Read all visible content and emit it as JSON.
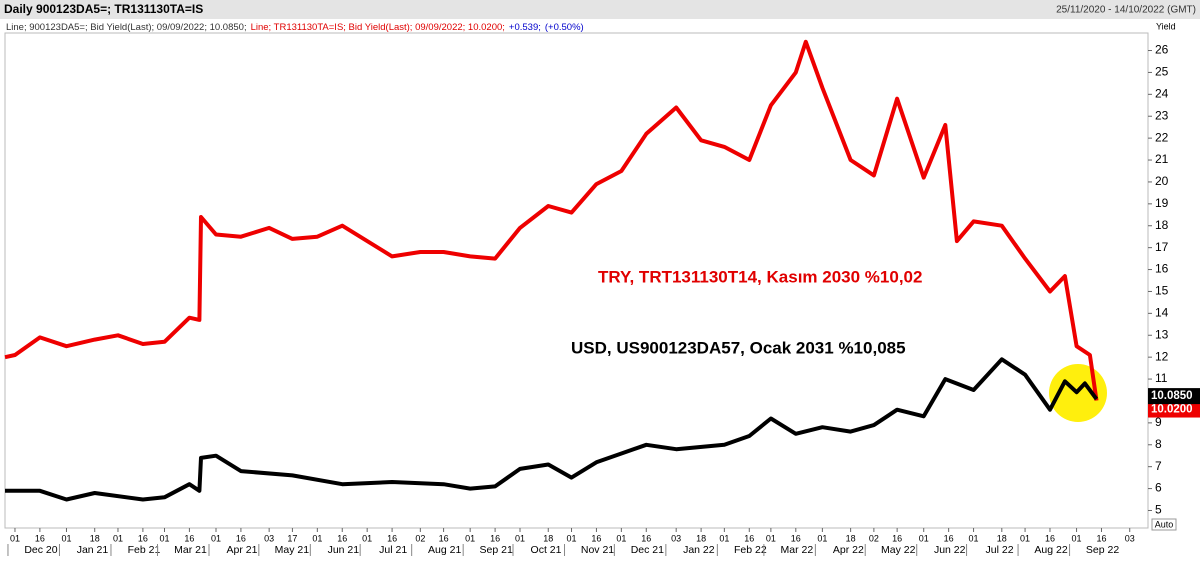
{
  "chart_data": {
    "type": "line",
    "title": "Daily 900123DA5=; TR131130TA=IS",
    "subtitle": "25/11/2020 - 14/10/2022 (GMT)",
    "legend_text": [
      {
        "text": "Line; 900123DA5=; Bid Yield(Last); 09/09/2022; 10.0850;",
        "color": "#333333"
      },
      {
        "text": "Line; TR131130TA=IS; Bid Yield(Last); 09/09/2022; 10.0200;",
        "color": "#e00000"
      },
      {
        "text": "+0.539;",
        "color": "#0000cc"
      },
      {
        "text": "(+0.50%)",
        "color": "#0000cc"
      }
    ],
    "y_axis_label": "Yield",
    "scale_mode": "Auto",
    "xlim": [
      "2020-11-25",
      "2022-10-14"
    ],
    "ylim": [
      4.2,
      26.8
    ],
    "yticks": [
      5,
      6,
      7,
      8,
      9,
      10,
      11,
      12,
      13,
      14,
      15,
      16,
      17,
      18,
      19,
      20,
      21,
      22,
      23,
      24,
      25,
      26
    ],
    "xticks": [
      {
        "value": "2020-12-01",
        "label": "01"
      },
      {
        "value": "2020-12-16",
        "label": "16"
      },
      {
        "value": "2021-01-01",
        "label": "01"
      },
      {
        "value": "2021-01-18",
        "label": "18"
      },
      {
        "value": "2021-02-01",
        "label": "01"
      },
      {
        "value": "2021-02-16",
        "label": "16"
      },
      {
        "value": "2021-03-01",
        "label": "01"
      },
      {
        "value": "2021-03-16",
        "label": "16"
      },
      {
        "value": "2021-04-01",
        "label": "01"
      },
      {
        "value": "2021-04-16",
        "label": "16"
      },
      {
        "value": "2021-05-03",
        "label": "03"
      },
      {
        "value": "2021-05-17",
        "label": "17"
      },
      {
        "value": "2021-06-01",
        "label": "01"
      },
      {
        "value": "2021-06-16",
        "label": "16"
      },
      {
        "value": "2021-07-01",
        "label": "01"
      },
      {
        "value": "2021-07-16",
        "label": "16"
      },
      {
        "value": "2021-08-02",
        "label": "02"
      },
      {
        "value": "2021-08-16",
        "label": "16"
      },
      {
        "value": "2021-09-01",
        "label": "01"
      },
      {
        "value": "2021-09-16",
        "label": "16"
      },
      {
        "value": "2021-10-01",
        "label": "01"
      },
      {
        "value": "2021-10-18",
        "label": "18"
      },
      {
        "value": "2021-11-01",
        "label": "01"
      },
      {
        "value": "2021-11-16",
        "label": "16"
      },
      {
        "value": "2021-12-01",
        "label": "01"
      },
      {
        "value": "2021-12-16",
        "label": "16"
      },
      {
        "value": "2022-01-03",
        "label": "03"
      },
      {
        "value": "2022-01-18",
        "label": "18"
      },
      {
        "value": "2022-02-01",
        "label": "01"
      },
      {
        "value": "2022-02-16",
        "label": "16"
      },
      {
        "value": "2022-03-01",
        "label": "01"
      },
      {
        "value": "2022-03-16",
        "label": "16"
      },
      {
        "value": "2022-04-01",
        "label": "01"
      },
      {
        "value": "2022-04-18",
        "label": "18"
      },
      {
        "value": "2022-05-02",
        "label": "02"
      },
      {
        "value": "2022-05-16",
        "label": "16"
      },
      {
        "value": "2022-06-01",
        "label": "01"
      },
      {
        "value": "2022-06-16",
        "label": "16"
      },
      {
        "value": "2022-07-01",
        "label": "01"
      },
      {
        "value": "2022-07-18",
        "label": "18"
      },
      {
        "value": "2022-08-01",
        "label": "01"
      },
      {
        "value": "2022-08-16",
        "label": "16"
      },
      {
        "value": "2022-09-01",
        "label": "01"
      },
      {
        "value": "2022-09-16",
        "label": "16"
      },
      {
        "value": "2022-10-03",
        "label": "03"
      }
    ],
    "month_labels": [
      {
        "value": "2020-12-01",
        "label": "Dec 20"
      },
      {
        "value": "2021-01-01",
        "label": "Jan 21"
      },
      {
        "value": "2021-02-01",
        "label": "Feb 21"
      },
      {
        "value": "2021-03-01",
        "label": "Mar 21"
      },
      {
        "value": "2021-04-01",
        "label": "Apr 21"
      },
      {
        "value": "2021-05-01",
        "label": "May 21"
      },
      {
        "value": "2021-06-01",
        "label": "Jun 21"
      },
      {
        "value": "2021-07-01",
        "label": "Jul 21"
      },
      {
        "value": "2021-08-01",
        "label": "Aug 21"
      },
      {
        "value": "2021-09-01",
        "label": "Sep 21"
      },
      {
        "value": "2021-10-01",
        "label": "Oct 21"
      },
      {
        "value": "2021-11-01",
        "label": "Nov 21"
      },
      {
        "value": "2021-12-01",
        "label": "Dec 21"
      },
      {
        "value": "2022-01-01",
        "label": "Jan 22"
      },
      {
        "value": "2022-02-01",
        "label": "Feb 22"
      },
      {
        "value": "2022-03-01",
        "label": "Mar 22"
      },
      {
        "value": "2022-04-01",
        "label": "Apr 22"
      },
      {
        "value": "2022-05-01",
        "label": "May 22"
      },
      {
        "value": "2022-06-01",
        "label": "Jun 22"
      },
      {
        "value": "2022-07-01",
        "label": "Jul 22"
      },
      {
        "value": "2022-08-01",
        "label": "Aug 22"
      },
      {
        "value": "2022-09-01",
        "label": "Sep 22"
      }
    ],
    "annotations": [
      {
        "text": "TRY, TRT131130T14, Kasım 2030 %10,02",
        "color": "#e00000"
      },
      {
        "text": "USD, US900123DA57, Ocak 2031 %10,085",
        "color": "#000000"
      }
    ],
    "series": [
      {
        "name": "TR131130TA=IS",
        "color": "#ee0000",
        "last_label": "10.0200",
        "x": [
          "2020-11-25",
          "2020-12-01",
          "2020-12-16",
          "2021-01-01",
          "2021-01-18",
          "2021-02-01",
          "2021-02-16",
          "2021-03-01",
          "2021-03-16",
          "2021-03-22",
          "2021-03-23",
          "2021-04-01",
          "2021-04-16",
          "2021-05-03",
          "2021-05-17",
          "2021-06-01",
          "2021-06-16",
          "2021-07-01",
          "2021-07-16",
          "2021-08-02",
          "2021-08-16",
          "2021-09-01",
          "2021-09-16",
          "2021-10-01",
          "2021-10-18",
          "2021-11-01",
          "2021-11-16",
          "2021-12-01",
          "2021-12-16",
          "2022-01-03",
          "2022-01-18",
          "2022-02-01",
          "2022-02-16",
          "2022-03-01",
          "2022-03-16",
          "2022-03-22",
          "2022-04-01",
          "2022-04-18",
          "2022-05-02",
          "2022-05-16",
          "2022-06-01",
          "2022-06-14",
          "2022-06-21",
          "2022-07-01",
          "2022-07-18",
          "2022-08-01",
          "2022-08-16",
          "2022-08-25",
          "2022-09-01",
          "2022-09-09",
          "2022-09-13"
        ],
        "values": [
          12.0,
          12.1,
          12.9,
          12.5,
          12.8,
          13.0,
          12.6,
          12.7,
          13.8,
          13.7,
          18.4,
          17.6,
          17.5,
          17.9,
          17.4,
          17.5,
          18.0,
          17.3,
          16.6,
          16.8,
          16.8,
          16.6,
          16.5,
          17.9,
          18.9,
          18.6,
          19.9,
          20.5,
          22.2,
          23.4,
          21.9,
          21.6,
          21.0,
          23.5,
          25.0,
          26.4,
          24.3,
          21.0,
          20.3,
          23.8,
          20.2,
          22.6,
          17.3,
          18.2,
          18.0,
          16.5,
          15.0,
          15.7,
          12.5,
          12.1,
          10.02
        ]
      },
      {
        "name": "900123DA5=",
        "color": "#000000",
        "last_label": "10.0850",
        "x": [
          "2020-11-25",
          "2020-12-16",
          "2021-01-01",
          "2021-01-18",
          "2021-02-16",
          "2021-03-01",
          "2021-03-16",
          "2021-03-22",
          "2021-03-23",
          "2021-04-01",
          "2021-04-16",
          "2021-05-17",
          "2021-06-16",
          "2021-07-16",
          "2021-08-16",
          "2021-09-01",
          "2021-09-16",
          "2021-10-01",
          "2021-10-18",
          "2021-11-01",
          "2021-11-16",
          "2021-12-01",
          "2021-12-16",
          "2022-01-03",
          "2022-02-01",
          "2022-02-16",
          "2022-03-01",
          "2022-03-16",
          "2022-04-01",
          "2022-04-18",
          "2022-05-02",
          "2022-05-16",
          "2022-06-01",
          "2022-06-14",
          "2022-07-01",
          "2022-07-18",
          "2022-08-01",
          "2022-08-16",
          "2022-08-25",
          "2022-09-01",
          "2022-09-06",
          "2022-09-13"
        ],
        "values": [
          5.9,
          5.9,
          5.5,
          5.8,
          5.5,
          5.6,
          6.2,
          5.9,
          7.4,
          7.5,
          6.8,
          6.6,
          6.2,
          6.3,
          6.2,
          6.0,
          6.1,
          6.9,
          7.1,
          6.5,
          7.2,
          7.6,
          8.0,
          7.8,
          8.0,
          8.4,
          9.2,
          8.5,
          8.8,
          8.6,
          8.9,
          9.6,
          9.3,
          11.0,
          10.5,
          11.9,
          11.2,
          9.6,
          10.9,
          10.4,
          10.8,
          10.085
        ]
      }
    ]
  }
}
